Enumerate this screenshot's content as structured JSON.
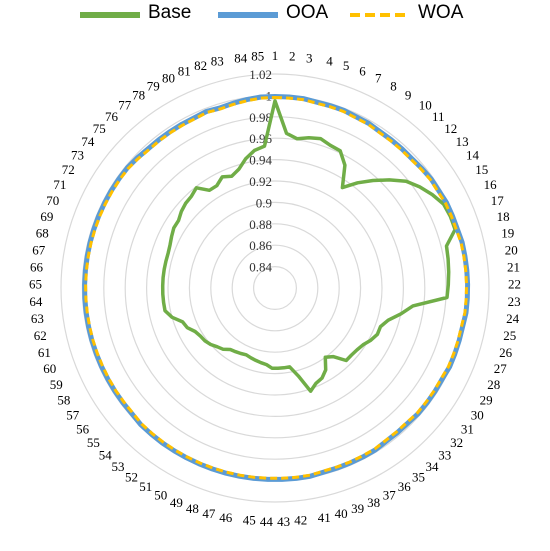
{
  "chart_data": {
    "type": "radar",
    "categories": [
      "1",
      "2",
      "3",
      "4",
      "5",
      "6",
      "7",
      "8",
      "9",
      "10",
      "11",
      "12",
      "13",
      "14",
      "15",
      "16",
      "17",
      "18",
      "19",
      "20",
      "21",
      "22",
      "23",
      "24",
      "25",
      "26",
      "27",
      "28",
      "29",
      "30",
      "31",
      "32",
      "33",
      "34",
      "35",
      "36",
      "37",
      "38",
      "39",
      "40",
      "41",
      "42",
      "43",
      "44",
      "45",
      "46",
      "47",
      "48",
      "49",
      "50",
      "51",
      "52",
      "53",
      "54",
      "55",
      "56",
      "57",
      "58",
      "59",
      "60",
      "61",
      "62",
      "63",
      "64",
      "65",
      "66",
      "67",
      "68",
      "69",
      "70",
      "71",
      "72",
      "73",
      "74",
      "75",
      "76",
      "77",
      "78",
      "79",
      "80",
      "81",
      "82",
      "83",
      "84",
      "85"
    ],
    "rlim": [
      0.82,
      1.02
    ],
    "rticks": [
      0.84,
      0.86,
      0.88,
      0.9,
      0.92,
      0.94,
      0.96,
      0.98,
      1,
      1.02
    ],
    "rtick_labels": [
      "0.84",
      "0.86",
      "0.88",
      "0.9",
      "0.92",
      "0.94",
      "0.96",
      "0.98",
      "1",
      "1.02"
    ],
    "grid": true,
    "legend_position": "top",
    "series": [
      {
        "name": "Base",
        "color": "#70ad47",
        "dashed": false,
        "values": [
          0.995,
          0.965,
          0.961,
          0.964,
          0.966,
          0.963,
          0.962,
          0.952,
          0.933,
          0.945,
          0.956,
          0.967,
          0.978,
          0.985,
          0.991,
          0.996,
          0.997,
          0.997,
          0.985,
          0.984,
          0.983,
          0.982,
          0.981,
          0.95,
          0.94,
          0.93,
          0.925,
          0.925,
          0.922,
          0.918,
          0.916,
          0.915,
          0.915,
          0.904,
          0.9,
          0.91,
          0.915,
          0.917,
          0.922,
          0.905,
          0.895,
          0.895,
          0.895,
          0.895,
          0.892,
          0.891,
          0.89,
          0.889,
          0.888,
          0.889,
          0.89,
          0.891,
          0.895,
          0.897,
          0.9,
          0.902,
          0.903,
          0.905,
          0.91,
          0.912,
          0.92,
          0.925,
          0.925,
          0.925,
          0.925,
          0.925,
          0.925,
          0.925,
          0.925,
          0.926,
          0.928,
          0.93,
          0.93,
          0.933,
          0.935,
          0.936,
          0.939,
          0.93,
          0.93,
          0.935,
          0.932,
          0.936,
          0.944,
          0.95,
          0.953
        ]
      },
      {
        "name": "OOA",
        "color": "#5b9bd5",
        "dashed": false,
        "values": [
          0.999,
          0.999,
          0.999,
          0.998,
          0.998,
          0.998,
          0.997,
          0.997,
          0.996,
          0.996,
          0.996,
          0.996,
          0.997,
          0.998,
          0.998,
          0.999,
          0.999,
          0.999,
          1.0,
          1.0,
          1.0,
          1.0,
          1.0,
          1.0,
          0.999,
          0.999,
          0.999,
          0.999,
          0.998,
          0.998,
          0.998,
          0.998,
          0.997,
          0.997,
          0.997,
          0.998,
          0.998,
          0.998,
          0.998,
          0.998,
          0.999,
          0.999,
          0.999,
          0.999,
          0.999,
          0.999,
          0.999,
          0.999,
          0.999,
          0.999,
          0.999,
          0.999,
          0.999,
          0.999,
          0.998,
          0.998,
          0.998,
          0.998,
          0.998,
          0.998,
          0.998,
          0.998,
          0.998,
          0.998,
          0.998,
          0.998,
          0.998,
          0.998,
          0.998,
          0.998,
          0.998,
          0.998,
          0.998,
          0.998,
          0.997,
          0.996,
          0.996,
          0.996,
          0.996,
          0.996,
          0.997,
          0.996,
          0.997,
          0.998,
          0.999
        ]
      },
      {
        "name": "WOA",
        "color": "#ffc000",
        "dashed": true,
        "values": [
          0.998,
          0.998,
          0.998,
          0.997,
          0.997,
          0.997,
          0.996,
          0.996,
          0.995,
          0.995,
          0.995,
          0.995,
          0.996,
          0.997,
          0.997,
          0.998,
          0.998,
          0.998,
          0.999,
          0.999,
          0.999,
          0.999,
          0.999,
          0.999,
          0.998,
          0.998,
          0.998,
          0.998,
          0.997,
          0.997,
          0.997,
          0.997,
          0.996,
          0.996,
          0.996,
          0.997,
          0.997,
          0.997,
          0.997,
          0.997,
          0.998,
          0.998,
          0.998,
          0.998,
          0.998,
          0.998,
          0.998,
          0.998,
          0.998,
          0.998,
          0.998,
          0.998,
          0.998,
          0.998,
          0.997,
          0.997,
          0.997,
          0.997,
          0.997,
          0.997,
          0.997,
          0.997,
          0.997,
          0.997,
          0.997,
          0.997,
          0.997,
          0.997,
          0.997,
          0.997,
          0.997,
          0.997,
          0.997,
          0.997,
          0.996,
          0.995,
          0.995,
          0.995,
          0.995,
          0.995,
          0.996,
          0.995,
          0.996,
          0.997,
          0.998
        ]
      }
    ]
  }
}
